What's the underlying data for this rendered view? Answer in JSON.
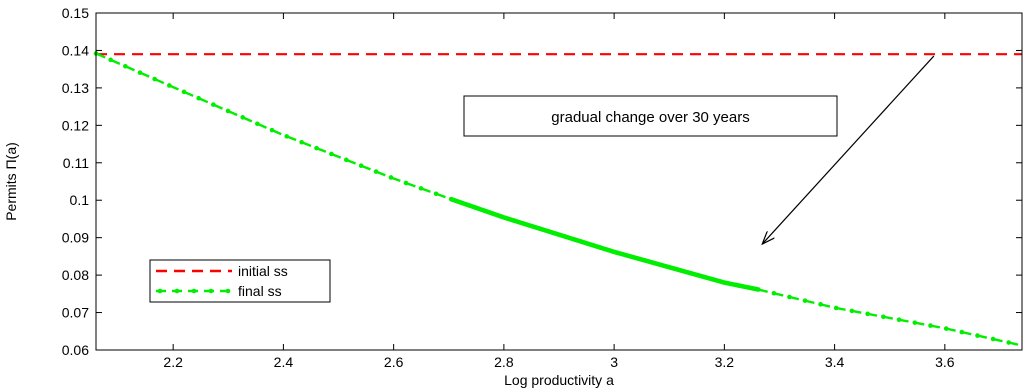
{
  "chart_data": {
    "type": "line",
    "title": "",
    "xlabel": "Log productivity a",
    "ylabel": "Permits Π(a)",
    "xlim": [
      2.06,
      3.74
    ],
    "ylim": [
      0.06,
      0.15
    ],
    "x_ticks": [
      2.2,
      2.4,
      2.6,
      2.8,
      3,
      3.2,
      3.4,
      3.6
    ],
    "x_tick_labels": [
      "2.2",
      "2.4",
      "2.6",
      "2.8",
      "3",
      "3.2",
      "3.4",
      "3.6"
    ],
    "y_ticks": [
      0.06,
      0.07,
      0.08,
      0.09,
      0.1,
      0.11,
      0.12,
      0.13,
      0.14,
      0.15
    ],
    "y_tick_labels": [
      "0.06",
      "0.07",
      "0.08",
      "0.09",
      "0.1",
      "0.11",
      "0.12",
      "0.13",
      "0.14",
      "0.15"
    ],
    "grid": false,
    "legend_position": "lower-left",
    "series": [
      {
        "name": "initial ss",
        "color": "#ff0000",
        "style": "dashed",
        "x": [
          2.06,
          3.74
        ],
        "y": [
          0.139,
          0.139
        ]
      },
      {
        "name": "final ss",
        "color": "#00ee00",
        "style": "dashed-dots",
        "x": [
          2.06,
          2.2,
          2.4,
          2.6,
          2.7,
          2.8,
          3.0,
          3.2,
          3.26,
          3.4,
          3.6,
          3.74
        ],
        "y": [
          0.1392,
          0.1302,
          0.1174,
          0.1058,
          0.1005,
          0.0954,
          0.0862,
          0.078,
          0.0762,
          0.0713,
          0.0658,
          0.0612
        ]
      }
    ],
    "annotation": {
      "text": "gradual change over 30 years",
      "arrow_from": [
        3.58,
        0.1385
      ],
      "arrow_to": [
        3.27,
        0.0885
      ]
    }
  }
}
